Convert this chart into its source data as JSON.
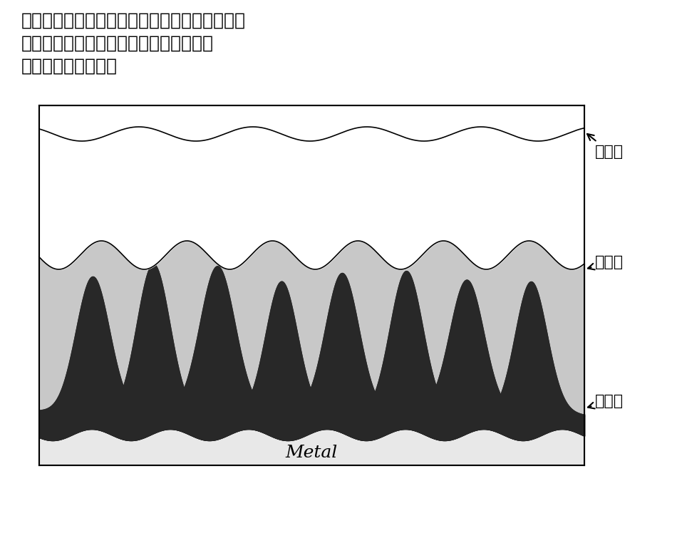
{
  "title_lines": [
    "（ハ）湯溶石けん（ステアリン酸ナトリウム）",
    "（ロ）金属石けん（ステアリン酸亜鉛）",
    "（イ）リン酸塩被膜"
  ],
  "label_ha": "（ハ）",
  "label_ro": "（ロ）",
  "label_i": "（イ）",
  "metal_label": "Metal",
  "color_white": "#ffffff",
  "color_light_gray": "#c8c8c8",
  "color_medium_gray": "#909090",
  "color_dark_gray": "#484848",
  "color_very_dark": "#282828",
  "color_metal_base": "#e8e8e8",
  "box_bg": "#ffffff",
  "border_color": "#000000"
}
